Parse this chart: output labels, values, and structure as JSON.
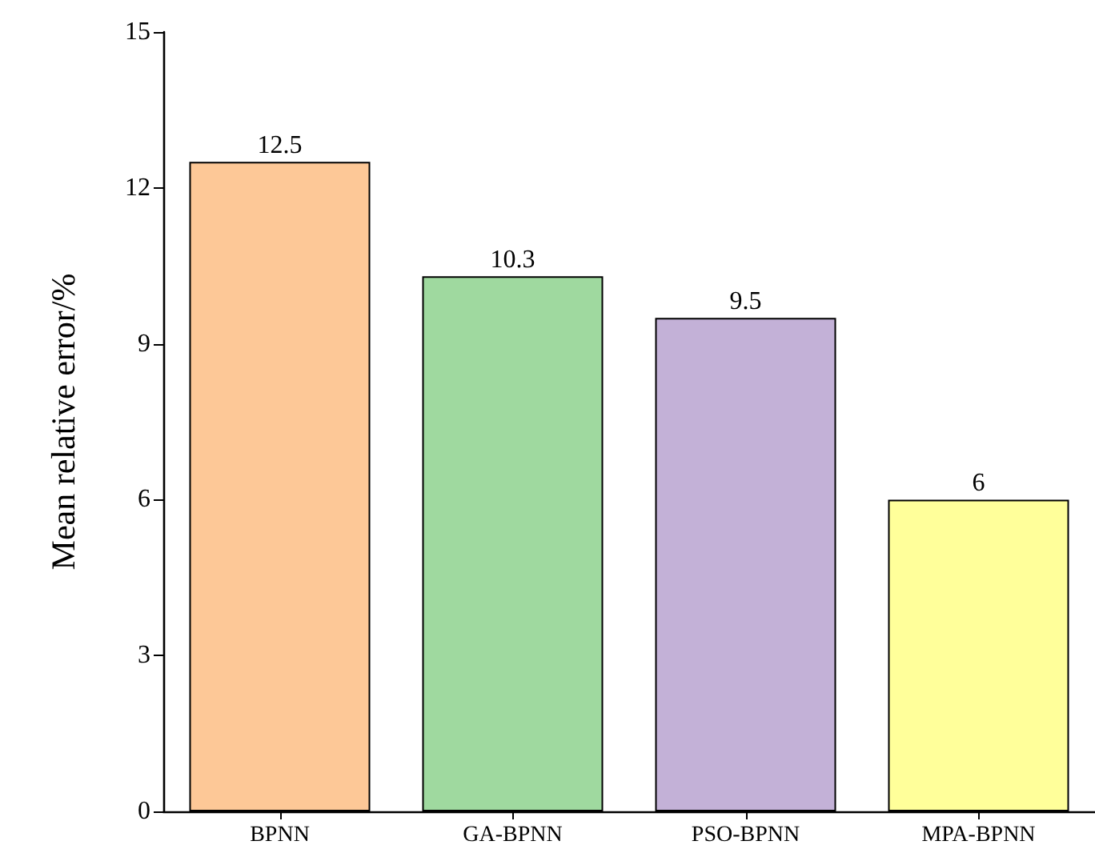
{
  "chart_data": {
    "type": "bar",
    "ylabel": "Mean relative error/%",
    "categories": [
      "BPNN",
      "GA-BPNN",
      "PSO-BPNN",
      "MPA-BPNN"
    ],
    "values": [
      12.5,
      10.3,
      9.5,
      6
    ],
    "colors": [
      "#fdc897",
      "#9fd99f",
      "#c3b1d7",
      "#ffff9a"
    ],
    "ylim": [
      0,
      15
    ],
    "yticks": [
      0,
      3,
      6,
      9,
      12,
      15
    ],
    "grid": false,
    "data_labels": true
  }
}
